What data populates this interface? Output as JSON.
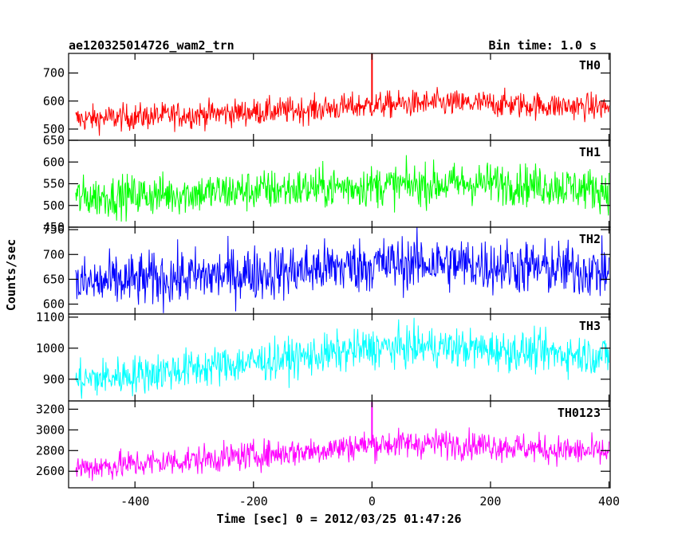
{
  "header": {
    "left_title": "ae120325014726_wam2_trn",
    "right_title": "Bin time: 1.0 s"
  },
  "chart_data": {
    "type": "line",
    "xlabel": "Time [sec] 0 = 2012/03/25 01:47:26",
    "ylabel": "Counts/sec",
    "xlim": [
      -512,
      402
    ],
    "xticks": [
      -400,
      -200,
      0,
      200,
      400
    ],
    "panels": [
      {
        "name": "TH0",
        "color": "#ff0000",
        "ylim": [
          460,
          770
        ],
        "yticks": [
          500,
          600,
          700
        ],
        "trend": {
          "x": [
            -500,
            -300,
            -100,
            0,
            100,
            200,
            300,
            400
          ],
          "y": [
            535,
            552,
            570,
            585,
            592,
            590,
            583,
            578
          ]
        },
        "noise": 24,
        "spikes": [
          {
            "x": 0,
            "y": 770
          }
        ]
      },
      {
        "name": "TH1",
        "color": "#00ff00",
        "ylim": [
          450,
          650
        ],
        "yticks": [
          450,
          500,
          550,
          600,
          650
        ],
        "trend": {
          "x": [
            -500,
            -300,
            -100,
            0,
            100,
            200,
            300,
            400
          ],
          "y": [
            518,
            528,
            540,
            545,
            548,
            552,
            545,
            535
          ]
        },
        "noise": 24,
        "spikes": []
      },
      {
        "name": "TH2",
        "color": "#0000ff",
        "ylim": [
          580,
          755
        ],
        "yticks": [
          600,
          650,
          700,
          750
        ],
        "trend": {
          "x": [
            -500,
            -300,
            -100,
            0,
            100,
            200,
            300,
            400
          ],
          "y": [
            640,
            655,
            670,
            680,
            683,
            678,
            672,
            665
          ]
        },
        "noise": 28,
        "spikes": []
      },
      {
        "name": "TH3",
        "color": "#00ffff",
        "ylim": [
          830,
          1110
        ],
        "yticks": [
          900,
          1000,
          1100
        ],
        "trend": {
          "x": [
            -500,
            -300,
            -100,
            0,
            100,
            200,
            300,
            400
          ],
          "y": [
            895,
            935,
            975,
            1000,
            1005,
            995,
            985,
            975
          ]
        },
        "noise": 32,
        "spikes": []
      },
      {
        "name": "TH0123",
        "color": "#ff00ff",
        "ylim": [
          2440,
          3280
        ],
        "yticks": [
          2600,
          2800,
          3000,
          3200
        ],
        "trend": {
          "x": [
            -500,
            -300,
            -100,
            0,
            100,
            200,
            300,
            400
          ],
          "y": [
            2630,
            2710,
            2800,
            2860,
            2870,
            2850,
            2810,
            2780
          ]
        },
        "noise": 70,
        "spikes": [
          {
            "x": 0,
            "y": 3270
          }
        ]
      }
    ]
  }
}
